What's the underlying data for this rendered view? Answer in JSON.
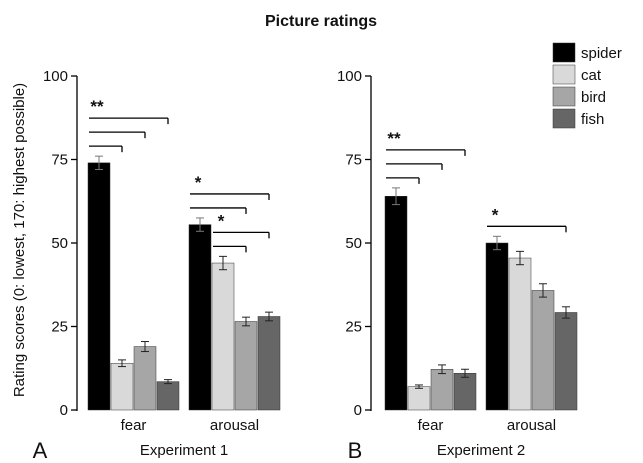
{
  "chart_data": {
    "type": "bar",
    "title": "Picture ratings",
    "ylabel": "Rating scores (0: lowest, 170: highest possible)",
    "ylim": [
      0,
      100
    ],
    "yticks": [
      "0",
      "25",
      "50",
      "75",
      "100"
    ],
    "legend": {
      "placement": "top-right",
      "entries": [
        {
          "name": "spider",
          "color": "#000000"
        },
        {
          "name": "cat",
          "color": "#d9d9d9"
        },
        {
          "name": "bird",
          "color": "#a6a6a6"
        },
        {
          "name": "fish",
          "color": "#666666"
        }
      ]
    },
    "panels": [
      {
        "label": "A",
        "xlabel": "Experiment 1",
        "categories": [
          "fear",
          "arousal"
        ],
        "series": [
          {
            "name": "spider",
            "values": [
              74,
              55.5
            ],
            "errors": [
              2,
              2
            ]
          },
          {
            "name": "cat",
            "values": [
              14,
              44
            ],
            "errors": [
              1,
              2
            ]
          },
          {
            "name": "bird",
            "values": [
              19,
              26.5
            ],
            "errors": [
              1.5,
              1.3
            ]
          },
          {
            "name": "fish",
            "values": [
              8.5,
              28
            ],
            "errors": [
              0.6,
              1.3
            ]
          }
        ],
        "significance": [
          {
            "label": "**",
            "comparisons": [
              [
                "fear",
                "spider",
                "cat"
              ],
              [
                "fear",
                "spider",
                "bird"
              ],
              [
                "fear",
                "spider",
                "fish"
              ]
            ]
          },
          {
            "label": "*",
            "comparisons": [
              [
                "arousal",
                "spider",
                "bird"
              ],
              [
                "arousal",
                "spider",
                "fish"
              ]
            ]
          },
          {
            "label": "*",
            "comparisons": [
              [
                "arousal",
                "cat",
                "bird"
              ],
              [
                "arousal",
                "cat",
                "fish"
              ]
            ]
          }
        ]
      },
      {
        "label": "B",
        "xlabel": "Experiment 2",
        "categories": [
          "fear",
          "arousal"
        ],
        "series": [
          {
            "name": "spider",
            "values": [
              64,
              50
            ],
            "errors": [
              2.5,
              2
            ]
          },
          {
            "name": "cat",
            "values": [
              7,
              45.5
            ],
            "errors": [
              0.5,
              2
            ]
          },
          {
            "name": "bird",
            "values": [
              12.2,
              35.8
            ],
            "errors": [
              1.3,
              2
            ]
          },
          {
            "name": "fish",
            "values": [
              11,
              29.2
            ],
            "errors": [
              1.2,
              1.7
            ]
          }
        ],
        "significance": [
          {
            "label": "**",
            "comparisons": [
              [
                "fear",
                "spider",
                "cat"
              ],
              [
                "fear",
                "spider",
                "bird"
              ],
              [
                "fear",
                "spider",
                "fish"
              ]
            ]
          },
          {
            "label": "*",
            "comparisons": [
              [
                "arousal",
                "spider",
                "fish"
              ]
            ]
          }
        ]
      }
    ]
  }
}
